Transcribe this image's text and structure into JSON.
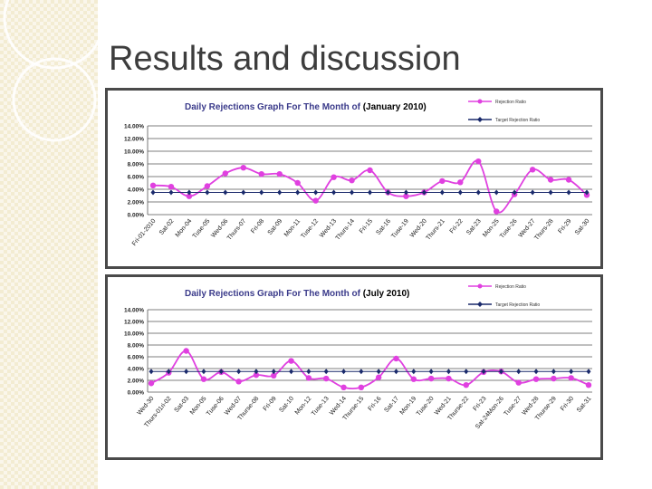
{
  "slide": {
    "title": "Results and discussion"
  },
  "colors": {
    "rejection_ratio": "#e040e0",
    "target_ratio": "#1a2a6c",
    "title_text": "#3a3a8a",
    "strip": "#f3ecd2"
  },
  "chart_data": [
    {
      "type": "line",
      "title_prefix": "Daily Rejections  Graph For The Month of ",
      "title_period": "(January 2010)",
      "categories": [
        "Fri-01-2010",
        "Sat-02",
        "Mon-04",
        "Tuse-05",
        "Wed-06",
        "Thurs-07",
        "Fri-08",
        "Sat-09",
        "Mon-11",
        "Tuse-12",
        "Wed-13",
        "Thurs-14",
        "Fri-15",
        "Sat-16",
        "Tuse-19",
        "Wed-20",
        "Thurs-21",
        "Fri-22",
        "Sat-23",
        "Mon-25",
        "Tuse-26",
        "Wed-27",
        "Thurs-28",
        "Fri-29",
        "Sat-30"
      ],
      "series": [
        {
          "name": "Rejection Ratio",
          "values": [
            4.6,
            4.4,
            2.9,
            4.5,
            6.5,
            7.4,
            6.4,
            6.4,
            5.0,
            2.2,
            5.9,
            5.4,
            7.0,
            3.5,
            2.9,
            3.5,
            5.3,
            5.1,
            8.4,
            0.5,
            3.2,
            7.1,
            5.5,
            5.5,
            3.1
          ]
        },
        {
          "name": "Target Rejection Ratio",
          "values": [
            3.5,
            3.5,
            3.5,
            3.5,
            3.5,
            3.5,
            3.5,
            3.5,
            3.5,
            3.5,
            3.5,
            3.5,
            3.5,
            3.5,
            3.5,
            3.5,
            3.5,
            3.5,
            3.5,
            3.5,
            3.5,
            3.5,
            3.5,
            3.5,
            3.5
          ]
        }
      ],
      "y_ticks": [
        "0.00%",
        "2.00%",
        "4.00%",
        "6.00%",
        "8.00%",
        "10.00%",
        "12.00%",
        "14.00%"
      ],
      "ylim": [
        0,
        14
      ],
      "grid": true,
      "legend_position": "top-right"
    },
    {
      "type": "line",
      "title_prefix": "Daily Rejections  Graph For The Month of ",
      "title_period": "(July 2010)",
      "categories": [
        "Wed-30",
        "Thurs-01ri-02",
        "Sat-03",
        "Mon-05",
        "Tuse-06",
        "Wed-07",
        "Thurse-08",
        "Fri-09",
        "Sat-10",
        "Mon-12",
        "Tuse-13",
        "Wed-14",
        "Thurse-15",
        "Fri-16",
        "Sat-17",
        "Mon-19",
        "Tuse-20",
        "Wed-21",
        "Thurse-22",
        "Fri-23",
        "Sat-24Mon-26",
        "Tuse-27",
        "Wed-28",
        "Thurse-29",
        "Fri-30",
        "Sat-31"
      ],
      "series": [
        {
          "name": "Rejection Ratio",
          "values": [
            1.5,
            3.3,
            7.0,
            2.2,
            3.4,
            1.8,
            2.9,
            2.8,
            5.3,
            2.4,
            2.3,
            0.8,
            0.8,
            2.5,
            5.7,
            2.2,
            2.3,
            2.3,
            1.2,
            3.4,
            3.5,
            1.6,
            2.2,
            2.3,
            2.4,
            1.2
          ]
        },
        {
          "name": "Target Rejection Ratio",
          "values": [
            3.5,
            3.5,
            3.5,
            3.5,
            3.5,
            3.5,
            3.5,
            3.5,
            3.5,
            3.5,
            3.5,
            3.5,
            3.5,
            3.5,
            3.5,
            3.5,
            3.5,
            3.5,
            3.5,
            3.5,
            3.5,
            3.5,
            3.5,
            3.5,
            3.5,
            3.5
          ]
        }
      ],
      "y_ticks": [
        "0.00%",
        "2.00%",
        "4.00%",
        "6.00%",
        "8.00%",
        "10.00%",
        "12.00%",
        "14.00%"
      ],
      "ylim": [
        0,
        14
      ],
      "grid": true,
      "legend_position": "top-right"
    }
  ]
}
